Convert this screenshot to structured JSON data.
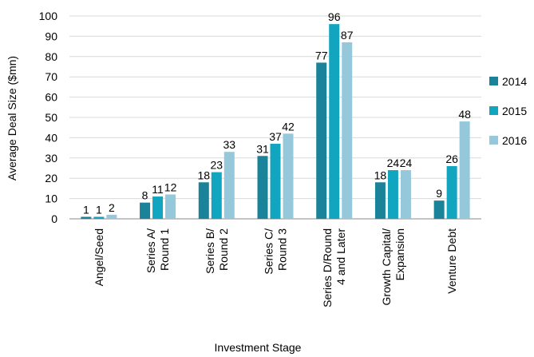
{
  "chart_data": {
    "type": "bar",
    "title": "",
    "xlabel": "Investment Stage",
    "ylabel": "Average Deal Size ($mn)",
    "ylim": [
      0,
      100
    ],
    "yticks": [
      0,
      10,
      20,
      30,
      40,
      50,
      60,
      70,
      80,
      90,
      100
    ],
    "grid": true,
    "legend_position": "right",
    "categories": [
      [
        "Angel/Seed"
      ],
      [
        "Series A/",
        "Round 1"
      ],
      [
        "Series B/",
        "Round 2"
      ],
      [
        "Series C/",
        "Round 3"
      ],
      [
        "Series D/Round",
        "4 and Later"
      ],
      [
        "Growth Capital/",
        "Expansion"
      ],
      [
        "Venture Debt"
      ]
    ],
    "series": [
      {
        "name": "2014",
        "color": "#1a8299",
        "values": [
          1,
          8,
          18,
          31,
          77,
          18,
          9
        ]
      },
      {
        "name": "2015",
        "color": "#12a5bf",
        "values": [
          1,
          11,
          23,
          37,
          96,
          24,
          26
        ]
      },
      {
        "name": "2016",
        "color": "#95c8da",
        "values": [
          2,
          12,
          33,
          42,
          87,
          24,
          48
        ]
      }
    ]
  }
}
